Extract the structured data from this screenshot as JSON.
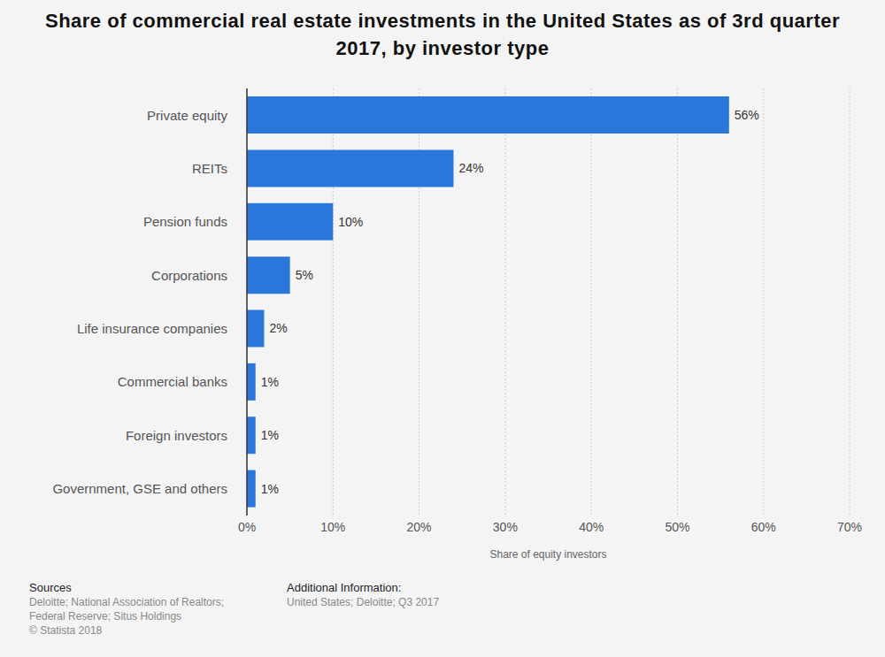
{
  "chart_data": {
    "type": "bar",
    "title": "Share of commercial real estate investments in the United States as of 3rd quarter 2017, by investor type",
    "orientation": "horizontal",
    "categories": [
      "Private equity",
      "REITs",
      "Pension funds",
      "Corporations",
      "Life insurance companies",
      "Commercial banks",
      "Foreign investors",
      "Government, GSE and others"
    ],
    "values": [
      56,
      24,
      10,
      5,
      2,
      1,
      1,
      1
    ],
    "value_labels": [
      "56%",
      "24%",
      "10%",
      "5%",
      "2%",
      "1%",
      "1%",
      "1%"
    ],
    "data_labels": true,
    "color": "#2a77dc",
    "x_label": "Share of equity investors",
    "xlim": [
      0,
      70
    ],
    "xticks": [
      {
        "value": 0,
        "label": "0%"
      },
      {
        "value": 10,
        "label": "10%"
      },
      {
        "value": 20,
        "label": "20%"
      },
      {
        "value": 30,
        "label": "30%"
      },
      {
        "value": 40,
        "label": "40%"
      },
      {
        "value": 50,
        "label": "50%"
      },
      {
        "value": 60,
        "label": "60%"
      },
      {
        "value": 70,
        "label": "70%"
      }
    ],
    "grid": true,
    "sources_title": "Sources",
    "sources": [
      "Deloitte; National Association of Realtors;",
      "Federal Reserve; Situs Holdings",
      "© Statista 2018"
    ],
    "additional_info_title": "Additional Information:",
    "additional_info": [
      "United States; Deloitte; Q3 2017"
    ]
  }
}
